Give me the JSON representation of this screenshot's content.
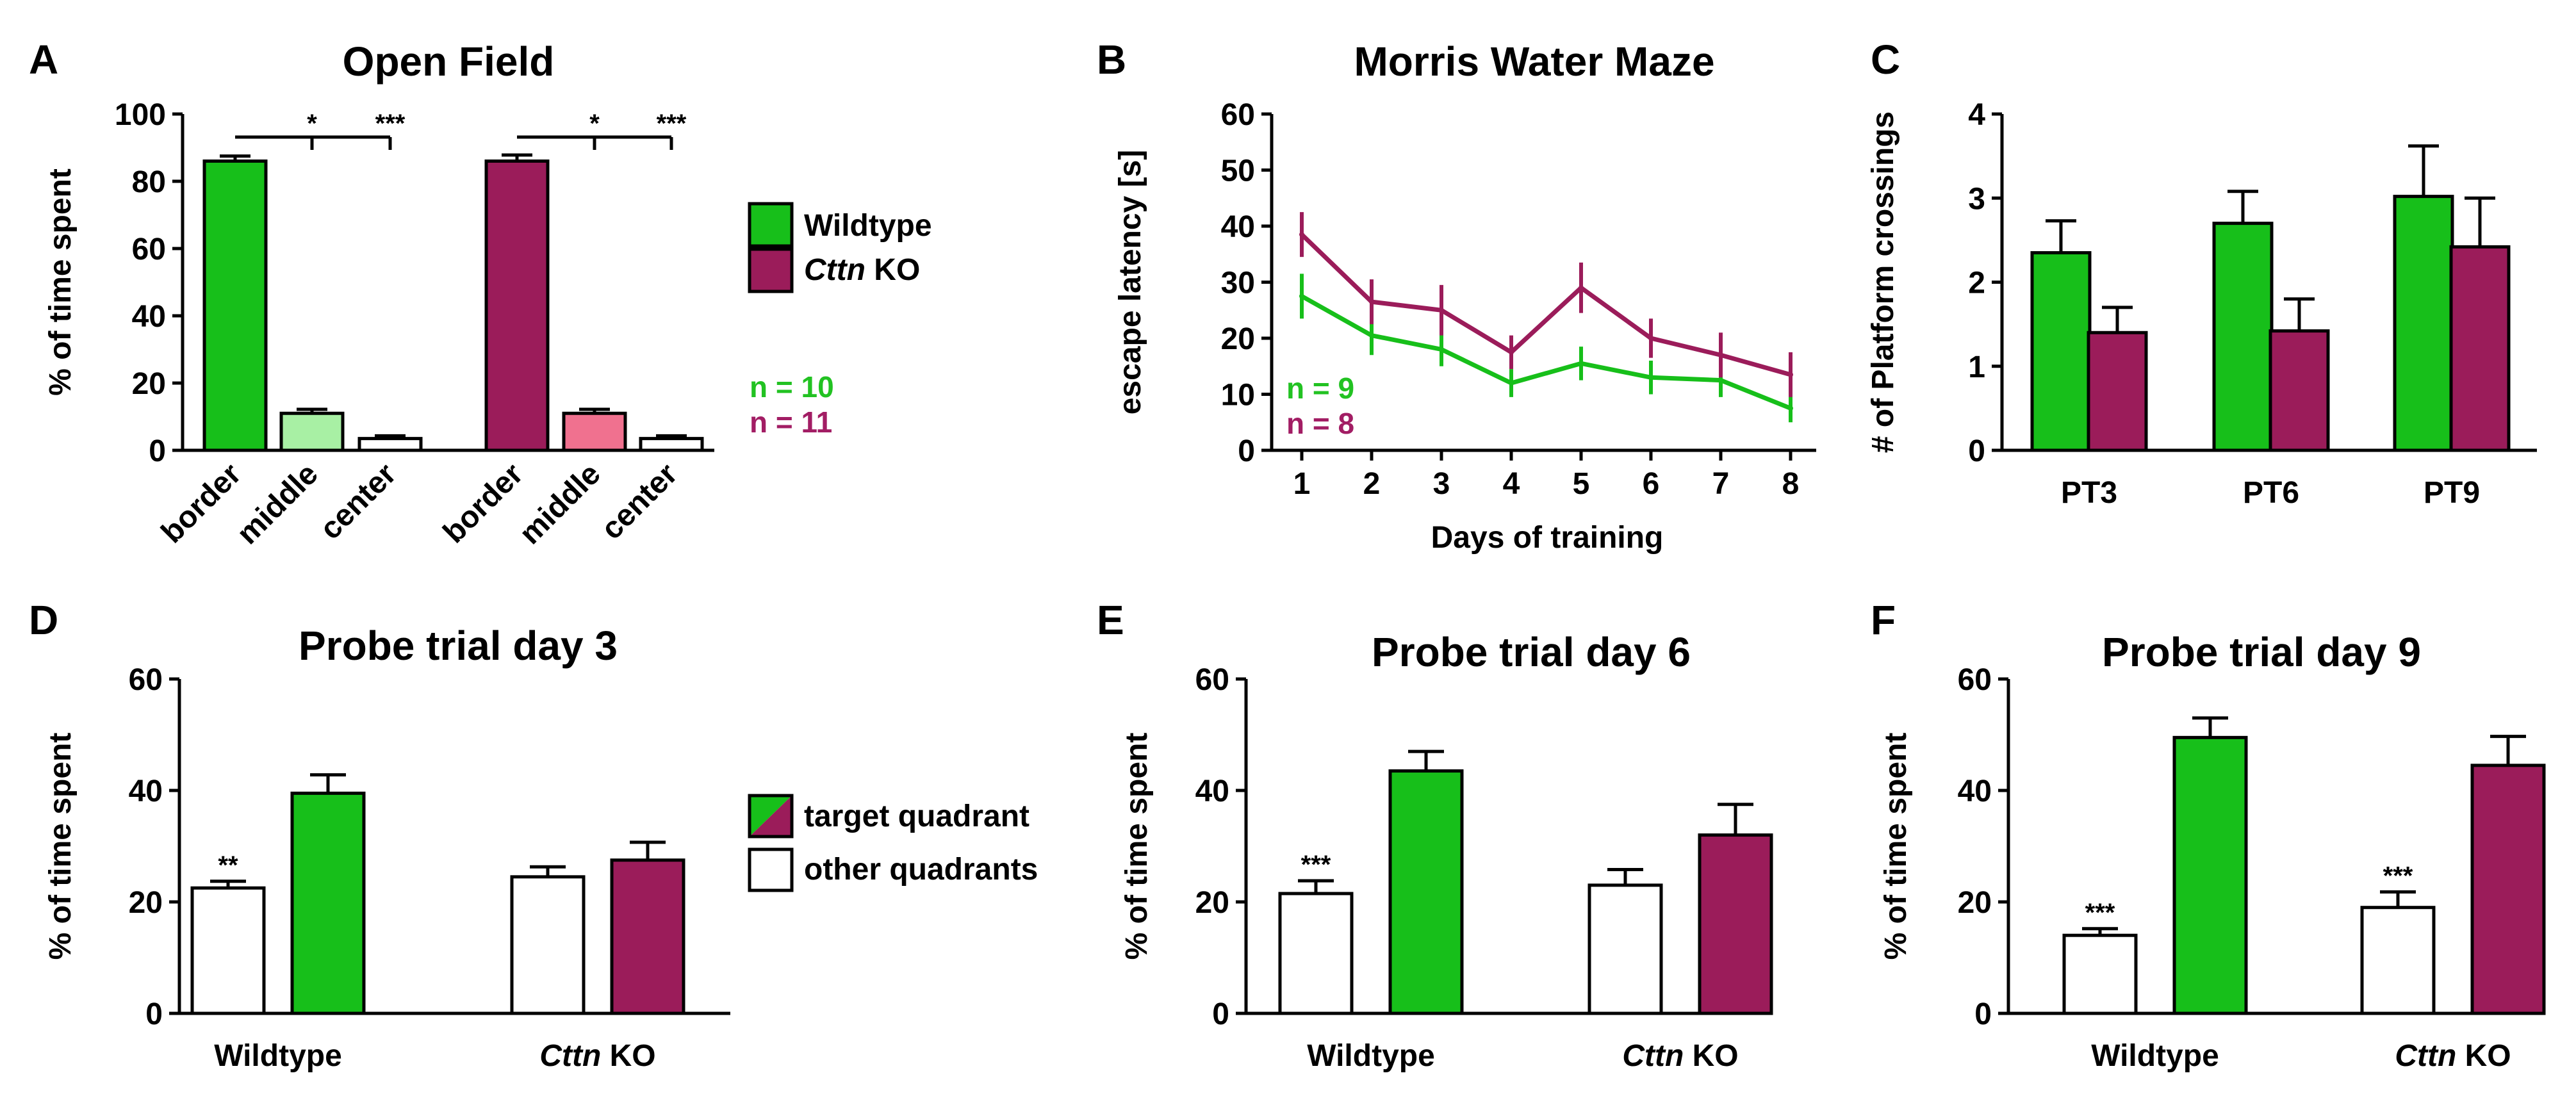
{
  "colors": {
    "wt": "#17bf1a",
    "ko": "#9b1c5a",
    "wt_light": "#a8f0a4",
    "ko_light": "#f0718f",
    "white": "#ffffff",
    "n_wt": "#22c222",
    "n_ko": "#a21d64"
  },
  "legend": {
    "wildtype": "Wildtype",
    "ko_gene": "Cttn",
    "ko_suffix": " KO",
    "target": "target quadrant",
    "other": "other quadrants"
  },
  "chart_data": [
    {
      "panel": "A",
      "type": "bar",
      "title": "Open Field",
      "ylabel": "% of time spent",
      "ylim": [
        0,
        100
      ],
      "yticks": [
        0,
        20,
        40,
        60,
        80,
        100
      ],
      "categories": [
        "border",
        "middle",
        "center",
        "border",
        "middle",
        "center"
      ],
      "values": [
        86,
        11,
        3.5,
        86,
        11,
        3.5
      ],
      "errors": [
        1.5,
        1.2,
        0.8,
        1.8,
        1.2,
        0.8
      ],
      "fill_keys": [
        "wt",
        "wt_light",
        "white",
        "ko",
        "ko_light",
        "white"
      ],
      "significance": [
        {
          "group": "Wildtype",
          "marks": [
            "*",
            "***"
          ]
        },
        {
          "group": "Cttn KO",
          "marks": [
            "*",
            "***"
          ]
        }
      ],
      "n_labels": [
        {
          "text": "n = 10",
          "color_key": "n_wt"
        },
        {
          "text": "n = 11",
          "color_key": "n_ko"
        }
      ]
    },
    {
      "panel": "B",
      "type": "line",
      "title": "Morris Water Maze",
      "xlabel": "Days of training",
      "ylabel": "escape latency [s]",
      "ylim": [
        0,
        60
      ],
      "yticks": [
        0,
        10,
        20,
        30,
        40,
        50,
        60
      ],
      "x": [
        1,
        2,
        3,
        4,
        5,
        6,
        7,
        8
      ],
      "series": [
        {
          "name": "Wildtype",
          "color_key": "wt",
          "values": [
            27.5,
            20.5,
            18,
            12,
            15.5,
            13,
            12.5,
            7.5
          ],
          "errors": [
            4,
            3.5,
            3,
            2.5,
            3,
            3,
            3,
            2.5
          ]
        },
        {
          "name": "Cttn KO",
          "color_key": "ko",
          "values": [
            38.5,
            26.5,
            25,
            17.5,
            29,
            20,
            17,
            13.5
          ],
          "errors": [
            4,
            4,
            4.5,
            3,
            4.5,
            3.5,
            4,
            4
          ]
        }
      ],
      "n_labels": [
        {
          "text": "n = 9",
          "color_key": "n_wt"
        },
        {
          "text": "n = 8",
          "color_key": "n_ko"
        }
      ]
    },
    {
      "panel": "C",
      "type": "bar",
      "title": "",
      "ylabel": "# of Platform crossings",
      "ylim": [
        0,
        4
      ],
      "yticks": [
        0,
        1,
        2,
        3,
        4
      ],
      "categories": [
        "PT3",
        "PT6",
        "PT9"
      ],
      "series": [
        {
          "name": "Wildtype",
          "color_key": "wt",
          "values": [
            2.35,
            2.7,
            3.02
          ],
          "errors": [
            0.38,
            0.38,
            0.6
          ]
        },
        {
          "name": "Cttn KO",
          "color_key": "ko",
          "values": [
            1.4,
            1.42,
            2.42
          ],
          "errors": [
            0.3,
            0.38,
            0.58
          ]
        }
      ]
    },
    {
      "panel": "D",
      "type": "bar",
      "title": "Probe trial day 3",
      "ylabel": "% of time spent",
      "ylim": [
        0,
        60
      ],
      "yticks": [
        0,
        20,
        40,
        60
      ],
      "categories": [
        "Wildtype",
        "Cttn KO"
      ],
      "series": [
        {
          "name": "other quadrants",
          "values": [
            22.5,
            24.5
          ],
          "errors": [
            1.2,
            1.8
          ],
          "fill_keys": [
            "white",
            "white"
          ]
        },
        {
          "name": "target quadrant",
          "values": [
            39.5,
            27.5
          ],
          "errors": [
            3.3,
            3.2
          ],
          "fill_keys": [
            "wt",
            "ko"
          ]
        }
      ],
      "significance": [
        {
          "group": "Wildtype",
          "mark": "**"
        }
      ]
    },
    {
      "panel": "E",
      "type": "bar",
      "title": "Probe trial day 6",
      "ylabel": "% of time spent",
      "ylim": [
        0,
        60
      ],
      "yticks": [
        0,
        20,
        40,
        60
      ],
      "categories": [
        "Wildtype",
        "Cttn KO"
      ],
      "series": [
        {
          "name": "other quadrants",
          "values": [
            21.5,
            23
          ],
          "errors": [
            2.3,
            2.8
          ],
          "fill_keys": [
            "white",
            "white"
          ]
        },
        {
          "name": "target quadrant",
          "values": [
            43.5,
            32
          ],
          "errors": [
            3.5,
            5.5
          ],
          "fill_keys": [
            "wt",
            "ko"
          ]
        }
      ],
      "significance": [
        {
          "group": "Wildtype",
          "mark": "***"
        }
      ]
    },
    {
      "panel": "F",
      "type": "bar",
      "title": "Probe trial day 9",
      "ylabel": "% of time spent",
      "ylim": [
        0,
        60
      ],
      "yticks": [
        0,
        20,
        40,
        60
      ],
      "categories": [
        "Wildtype",
        "Cttn KO"
      ],
      "series": [
        {
          "name": "other quadrants",
          "values": [
            14,
            19
          ],
          "errors": [
            1.2,
            2.8
          ],
          "fill_keys": [
            "white",
            "white"
          ]
        },
        {
          "name": "target quadrant",
          "values": [
            49.5,
            44.5
          ],
          "errors": [
            3.5,
            5.2
          ],
          "fill_keys": [
            "wt",
            "ko"
          ]
        }
      ],
      "significance": [
        {
          "group": "Wildtype",
          "mark": "***"
        },
        {
          "group": "Cttn KO",
          "mark": "***"
        }
      ]
    }
  ]
}
